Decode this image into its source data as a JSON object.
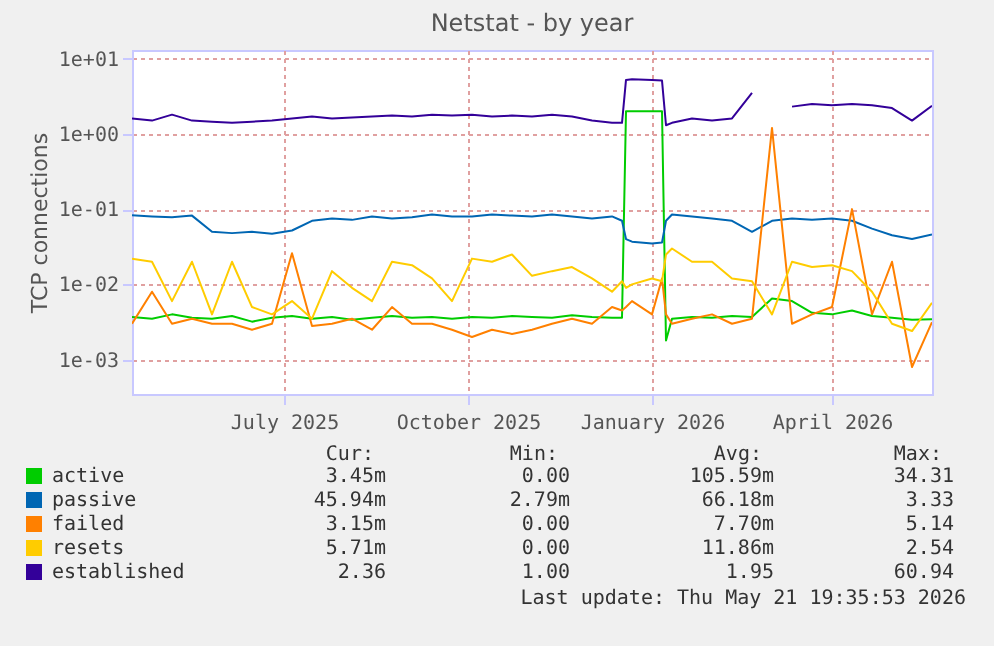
{
  "chart_data": {
    "type": "line",
    "title": "Netstat - by year",
    "ylabel": "TCP connections",
    "x": [
      "2025-04-16",
      "2025-04-26",
      "2025-05-06",
      "2025-05-16",
      "2025-05-26",
      "2025-06-05",
      "2025-06-15",
      "2025-06-25",
      "2025-07-05",
      "2025-07-15",
      "2025-07-25",
      "2025-08-04",
      "2025-08-14",
      "2025-08-24",
      "2025-09-03",
      "2025-09-13",
      "2025-09-23",
      "2025-10-03",
      "2025-10-13",
      "2025-10-23",
      "2025-11-02",
      "2025-11-12",
      "2025-11-22",
      "2025-12-02",
      "2025-12-12",
      "2025-12-17",
      "2025-12-19",
      "2025-12-22",
      "2026-01-01",
      "2026-01-06",
      "2026-01-08",
      "2026-01-11",
      "2026-01-21",
      "2026-01-31",
      "2026-02-10",
      "2026-02-20",
      "2026-03-02",
      "2026-03-12",
      "2026-03-22",
      "2026-04-01",
      "2026-04-11",
      "2026-04-21",
      "2026-05-01",
      "2026-05-11",
      "2026-05-21"
    ],
    "series": [
      {
        "name": "active",
        "color": "#00cc00",
        "values": [
          0.0037,
          0.0035,
          0.004,
          0.0036,
          0.0035,
          0.0038,
          0.0032,
          0.0036,
          0.0038,
          0.0035,
          0.0037,
          0.0034,
          0.0036,
          0.0038,
          0.0036,
          0.0037,
          0.0035,
          0.0037,
          0.0036,
          0.0038,
          0.0037,
          0.0036,
          0.0039,
          0.0037,
          0.0036,
          0.0036,
          2.0,
          2.0,
          2.0,
          2.0,
          0.0018,
          0.0035,
          0.0037,
          0.0036,
          0.0038,
          0.0037,
          0.0065,
          0.006,
          0.0042,
          0.004,
          0.0045,
          0.0038,
          0.0036,
          0.0034,
          0.00345
        ]
      },
      {
        "name": "passive",
        "color": "#0066b3",
        "values": [
          0.083,
          0.08,
          0.078,
          0.082,
          0.05,
          0.048,
          0.05,
          0.047,
          0.052,
          0.07,
          0.075,
          0.072,
          0.08,
          0.075,
          0.078,
          0.085,
          0.08,
          0.08,
          0.085,
          0.082,
          0.08,
          0.085,
          0.08,
          0.075,
          0.08,
          0.07,
          0.04,
          0.037,
          0.035,
          0.036,
          0.07,
          0.085,
          0.08,
          0.075,
          0.07,
          0.05,
          0.07,
          0.075,
          0.072,
          0.075,
          0.07,
          0.055,
          0.045,
          0.04,
          0.046
        ]
      },
      {
        "name": "failed",
        "color": "#ff8000",
        "values": [
          0.003,
          0.008,
          0.003,
          0.0035,
          0.003,
          0.003,
          0.0025,
          0.003,
          0.026,
          0.0028,
          0.003,
          0.0035,
          0.0025,
          0.005,
          0.003,
          0.003,
          0.0025,
          0.002,
          0.0025,
          0.0022,
          0.0025,
          0.003,
          0.0035,
          0.003,
          0.005,
          0.0045,
          0.005,
          0.006,
          0.004,
          0.012,
          0.004,
          0.003,
          0.0035,
          0.004,
          0.003,
          0.0035,
          1.2,
          0.003,
          0.004,
          0.005,
          0.1,
          0.004,
          0.02,
          0.0008,
          0.00315
        ]
      },
      {
        "name": "resets",
        "color": "#ffcc00",
        "values": [
          0.022,
          0.02,
          0.006,
          0.02,
          0.004,
          0.02,
          0.005,
          0.004,
          0.006,
          0.0035,
          0.015,
          0.009,
          0.006,
          0.02,
          0.018,
          0.012,
          0.006,
          0.022,
          0.02,
          0.025,
          0.013,
          0.015,
          0.017,
          0.012,
          0.008,
          0.011,
          0.009,
          0.01,
          0.012,
          0.011,
          0.025,
          0.03,
          0.02,
          0.02,
          0.012,
          0.011,
          0.004,
          0.02,
          0.017,
          0.018,
          0.015,
          0.008,
          0.003,
          0.0024,
          0.0057
        ]
      },
      {
        "name": "established",
        "color": "#330099",
        "values": [
          1.6,
          1.5,
          1.8,
          1.5,
          1.45,
          1.4,
          1.45,
          1.5,
          1.6,
          1.7,
          1.6,
          1.65,
          1.7,
          1.75,
          1.7,
          1.8,
          1.75,
          1.8,
          1.7,
          1.75,
          1.7,
          1.8,
          1.7,
          1.5,
          1.4,
          1.4,
          5.2,
          5.3,
          5.2,
          5.1,
          1.3,
          1.4,
          1.6,
          1.5,
          1.6,
          3.5,
          null,
          2.3,
          2.5,
          2.4,
          2.5,
          2.4,
          2.2,
          1.5,
          2.36
        ]
      }
    ],
    "xlim": [
      "2025-04-16",
      "2026-05-21"
    ],
    "xticks": [
      {
        "value": "2025-07-01",
        "label": "July 2025"
      },
      {
        "value": "2025-10-01",
        "label": "October 2025"
      },
      {
        "value": "2026-01-01",
        "label": "January 2026"
      },
      {
        "value": "2026-04-01",
        "label": "April 2026"
      }
    ],
    "ylim": [
      0.00035,
      13
    ],
    "yticks": [
      {
        "value": 0.001,
        "label": "1e-03"
      },
      {
        "value": 0.01,
        "label": "1e-02"
      },
      {
        "value": 0.1,
        "label": "1e-01"
      },
      {
        "value": 1,
        "label": "1e+00"
      },
      {
        "value": 10,
        "label": "1e+01"
      }
    ],
    "log": "y",
    "grid": true,
    "legend": "bottom left",
    "line_style": "solid",
    "marker": "none",
    "annotations": [
      "Cur:",
      "Min:",
      "Avg:",
      "Max:",
      "3.45m",
      "0.00",
      "105.59m",
      "34.31",
      "45.94m",
      "2.79m",
      "66.18m",
      "3.33",
      "3.15m",
      "0.00",
      "7.70m",
      "5.14",
      "5.71m",
      "0.00",
      "11.86m",
      "2.54",
      "2.36",
      "1.00",
      "1.95",
      "60.94",
      "Last update: Thu May 21 19:35:53 2026"
    ]
  }
}
